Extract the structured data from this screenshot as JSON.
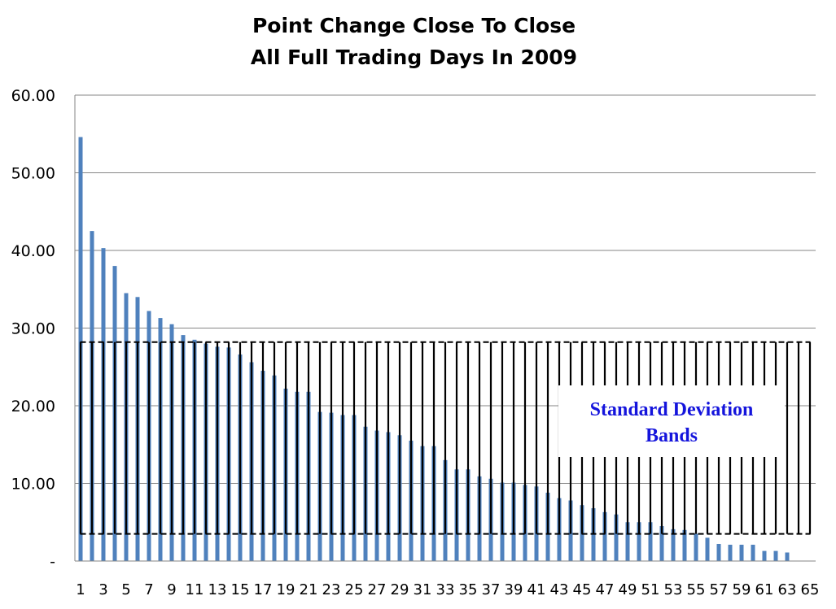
{
  "chart_data": {
    "type": "bar",
    "title_line1": "Point Change Close To Close",
    "title_line2": "All Full Trading Days In 2009",
    "xlabel": "",
    "ylabel": "",
    "ylim": [
      0,
      60
    ],
    "yticks": [
      "-",
      "10.00",
      "20.00",
      "30.00",
      "40.00",
      "50.00",
      "60.00"
    ],
    "x": [
      1,
      2,
      3,
      4,
      5,
      6,
      7,
      8,
      9,
      10,
      11,
      12,
      13,
      14,
      15,
      16,
      17,
      18,
      19,
      20,
      21,
      22,
      23,
      24,
      25,
      26,
      27,
      28,
      29,
      30,
      31,
      32,
      33,
      34,
      35,
      36,
      37,
      38,
      39,
      40,
      41,
      42,
      43,
      44,
      45,
      46,
      47,
      48,
      49,
      50,
      51,
      52,
      53,
      54,
      55,
      56,
      57,
      58,
      59,
      60,
      61,
      62,
      63,
      64,
      65
    ],
    "x_tick_labels": [
      "1",
      "3",
      "5",
      "7",
      "9",
      "11",
      "13",
      "15",
      "17",
      "19",
      "21",
      "23",
      "25",
      "27",
      "29",
      "31",
      "33",
      "35",
      "37",
      "39",
      "41",
      "43",
      "45",
      "47",
      "49",
      "51",
      "53",
      "55",
      "57",
      "59",
      "61",
      "63",
      "65"
    ],
    "values": [
      54.6,
      42.5,
      40.3,
      38.0,
      34.5,
      34.0,
      32.2,
      31.3,
      30.5,
      29.1,
      28.5,
      28.0,
      27.6,
      27.5,
      26.6,
      25.6,
      24.5,
      23.9,
      22.2,
      21.8,
      21.8,
      19.2,
      19.1,
      18.8,
      18.8,
      17.3,
      16.8,
      16.6,
      16.2,
      15.5,
      14.8,
      14.8,
      13.0,
      11.8,
      11.8,
      10.9,
      10.6,
      10.1,
      10.1,
      9.8,
      9.6,
      8.8,
      8.1,
      7.8,
      7.2,
      6.8,
      6.3,
      6.0,
      5.0,
      5.0,
      5.0,
      4.5,
      4.1,
      4.0,
      3.5,
      3.0,
      2.2,
      2.1,
      2.1,
      2.1,
      1.3,
      1.3,
      1.1,
      0,
      0
    ],
    "band": {
      "upper": 28.2,
      "lower": 3.5
    },
    "annotation_line1": "Standard Deviation",
    "annotation_line2": "Bands",
    "grid": true,
    "legend": "none",
    "colors": {
      "bar": "#4f81bd",
      "grid": "#868686",
      "band": "#000000",
      "annotation": "#1414dc"
    }
  }
}
